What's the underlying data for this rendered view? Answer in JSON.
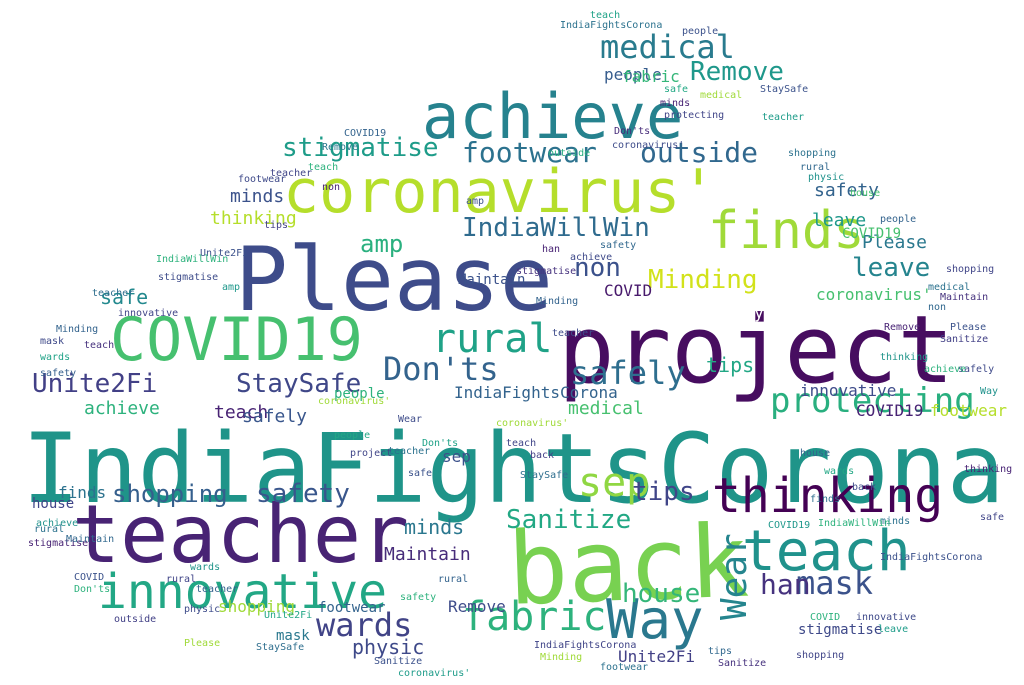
{
  "words": [
    {
      "text": "IndiaFightsCorona",
      "color": "#1f9489"
    },
    {
      "text": "project",
      "color": "#470d60"
    },
    {
      "text": "Please",
      "color": "#3e4c8a"
    },
    {
      "text": "back",
      "color": "#78d151"
    },
    {
      "text": "teacher",
      "color": "#482374"
    },
    {
      "text": "achieve",
      "color": "#26828e"
    },
    {
      "text": "coronavirus'",
      "color": "#b5de2b"
    },
    {
      "text": "COVID19",
      "color": "#46c06f"
    },
    {
      "text": "innovative",
      "color": "#22a785"
    },
    {
      "text": "thinking",
      "color": "#440154"
    },
    {
      "text": "teach",
      "color": "#20928c"
    },
    {
      "text": "Way",
      "color": "#2a788e"
    },
    {
      "text": "finds",
      "color": "#a0da39"
    },
    {
      "text": "rural",
      "color": "#1fa287"
    },
    {
      "text": "Don'ts",
      "color": "#33638d"
    },
    {
      "text": "footwear",
      "color": "#2c728e"
    },
    {
      "text": "outside",
      "color": "#31688e"
    },
    {
      "text": "medical",
      "color": "#297b8e"
    },
    {
      "text": "fabric",
      "color": "#2db27d"
    },
    {
      "text": "Wear",
      "color": "#25858e"
    },
    {
      "text": "protecting",
      "color": "#29af7f"
    },
    {
      "text": "shopping",
      "color": "#355f8d"
    },
    {
      "text": "safety",
      "color": "#39568c"
    },
    {
      "text": "sep",
      "color": "#90d743"
    },
    {
      "text": "tips",
      "color": "#404588"
    },
    {
      "text": "Sanitize",
      "color": "#22a884"
    },
    {
      "text": "wards",
      "color": "#414487"
    },
    {
      "text": "mask",
      "color": "#3b528b"
    },
    {
      "text": "house",
      "color": "#34b679"
    },
    {
      "text": "han",
      "color": "#46327e"
    },
    {
      "text": "Unite2Fi",
      "color": "#424086"
    },
    {
      "text": "StaySafe",
      "color": "#3f4788"
    },
    {
      "text": "safely",
      "color": "#2e6e8e"
    },
    {
      "text": "IndiaWillWin",
      "color": "#2f6b8e"
    },
    {
      "text": "stigmatise",
      "color": "#1e9c89"
    },
    {
      "text": "Remove",
      "color": "#1f988b"
    },
    {
      "text": "Minding",
      "color": "#d2e21b"
    },
    {
      "text": "leave",
      "color": "#25848e"
    },
    {
      "text": "non",
      "color": "#3b518b"
    },
    {
      "text": "people",
      "color": "#365c8d"
    },
    {
      "text": "Maintain",
      "color": "#472c7a"
    },
    {
      "text": "minds",
      "color": "#2a778e"
    },
    {
      "text": "amp",
      "color": "#2ab07f"
    },
    {
      "text": "physic",
      "color": "#3e4989"
    },
    {
      "text": "safe",
      "color": "#23898e"
    },
    {
      "text": "COVID",
      "color": "#481a6c"
    }
  ]
}
